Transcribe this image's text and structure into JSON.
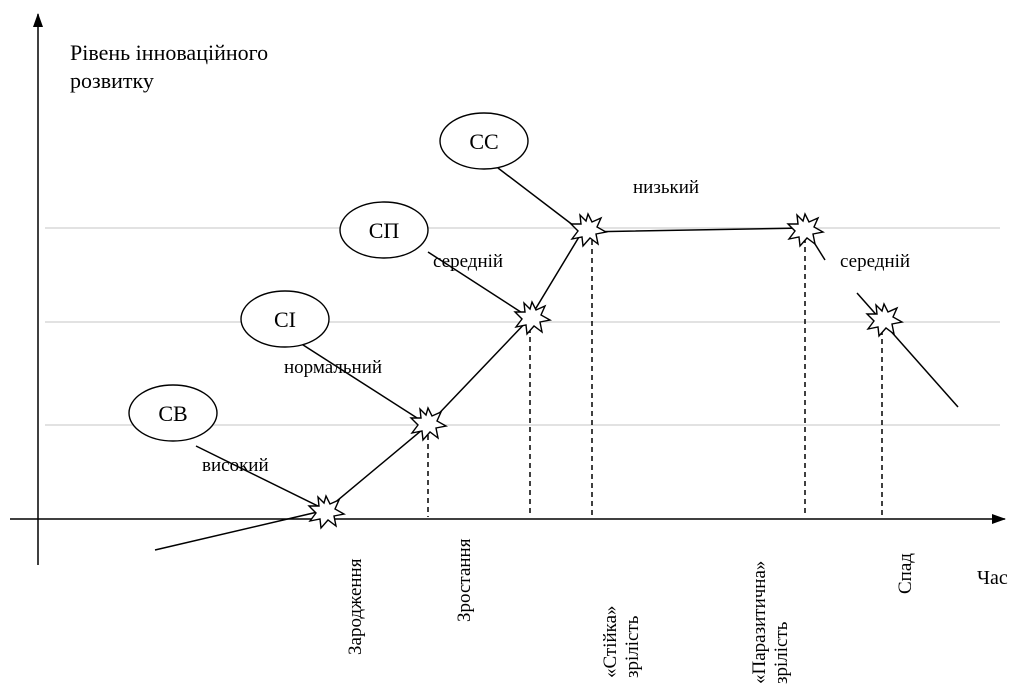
{
  "y_axis_label": [
    "Рівень інноваційного",
    "розвитку"
  ],
  "x_axis_label": "Час",
  "circles": [
    "СВ",
    "СІ",
    "СП",
    "СС"
  ],
  "segment_labels": [
    "високий",
    "нормальний",
    "середній",
    "низький",
    "середній"
  ],
  "stages": [
    [
      "Зародження"
    ],
    [
      "Зростання"
    ],
    [
      "«Стійка»",
      "зрілість"
    ],
    [
      "«Паразитична»",
      "зрілість"
    ],
    [
      "Спад"
    ]
  ],
  "colors": {
    "line": "#000000",
    "gridline": "#d9d9d9"
  },
  "icons": [
    "burst-marker-icon"
  ]
}
